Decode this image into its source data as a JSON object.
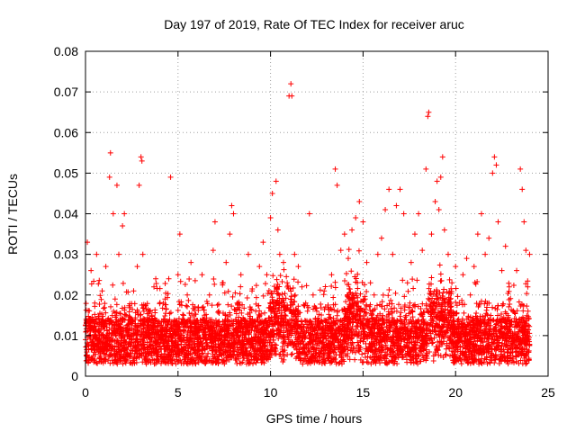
{
  "chart_data": {
    "type": "scatter",
    "title": "Day 197 of 2019, Rate Of TEC Index for receiver aruc",
    "xlabel": "GPS time / hours",
    "ylabel": "ROTI / TECUs",
    "xlim": [
      0,
      25
    ],
    "ylim": [
      0,
      0.08
    ],
    "x_ticks": [
      "0",
      "5",
      "10",
      "15",
      "20",
      "25"
    ],
    "y_ticks": [
      "0",
      "0.01",
      "0.02",
      "0.03",
      "0.04",
      "0.05",
      "0.06",
      "0.07",
      "0.08"
    ],
    "grid": true,
    "marker": "plus",
    "color": "#ff0000",
    "series": [
      {
        "name": "ROTI",
        "points": [
          [
            0.0,
            0.009
          ],
          [
            0.1,
            0.033
          ],
          [
            0.2,
            0.012
          ],
          [
            0.3,
            0.026
          ],
          [
            0.4,
            0.008
          ],
          [
            0.5,
            0.018
          ],
          [
            0.6,
            0.03
          ],
          [
            0.7,
            0.011
          ],
          [
            0.8,
            0.006
          ],
          [
            0.9,
            0.021
          ],
          [
            1.0,
            0.013
          ],
          [
            1.1,
            0.027
          ],
          [
            1.2,
            0.009
          ],
          [
            1.3,
            0.049
          ],
          [
            1.35,
            0.055
          ],
          [
            1.5,
            0.04
          ],
          [
            1.6,
            0.019
          ],
          [
            1.7,
            0.047
          ],
          [
            1.8,
            0.03
          ],
          [
            1.9,
            0.012
          ],
          [
            2.0,
            0.037
          ],
          [
            2.1,
            0.04
          ],
          [
            2.2,
            0.015
          ],
          [
            2.4,
            0.008
          ],
          [
            2.6,
            0.021
          ],
          [
            2.8,
            0.027
          ],
          [
            2.9,
            0.047
          ],
          [
            3.0,
            0.054
          ],
          [
            3.05,
            0.053
          ],
          [
            3.1,
            0.03
          ],
          [
            3.3,
            0.01
          ],
          [
            3.5,
            0.016
          ],
          [
            3.7,
            0.022
          ],
          [
            3.9,
            0.013
          ],
          [
            4.1,
            0.009
          ],
          [
            4.3,
            0.019
          ],
          [
            4.5,
            0.024
          ],
          [
            4.6,
            0.049
          ],
          [
            4.8,
            0.011
          ],
          [
            5.0,
            0.025
          ],
          [
            5.1,
            0.035
          ],
          [
            5.3,
            0.015
          ],
          [
            5.5,
            0.02
          ],
          [
            5.7,
            0.028
          ],
          [
            5.9,
            0.008
          ],
          [
            6.1,
            0.017
          ],
          [
            6.3,
            0.025
          ],
          [
            6.5,
            0.012
          ],
          [
            6.7,
            0.02
          ],
          [
            6.9,
            0.031
          ],
          [
            7.0,
            0.038
          ],
          [
            7.2,
            0.016
          ],
          [
            7.4,
            0.023
          ],
          [
            7.6,
            0.028
          ],
          [
            7.8,
            0.035
          ],
          [
            7.9,
            0.042
          ],
          [
            8.0,
            0.04
          ],
          [
            8.2,
            0.018
          ],
          [
            8.4,
            0.025
          ],
          [
            8.6,
            0.012
          ],
          [
            8.8,
            0.03
          ],
          [
            9.0,
            0.021
          ],
          [
            9.2,
            0.016
          ],
          [
            9.4,
            0.027
          ],
          [
            9.6,
            0.033
          ],
          [
            9.8,
            0.025
          ],
          [
            10.0,
            0.039
          ],
          [
            10.1,
            0.045
          ],
          [
            10.3,
            0.048
          ],
          [
            10.4,
            0.036
          ],
          [
            10.5,
            0.03
          ],
          [
            10.7,
            0.028
          ],
          [
            10.9,
            0.023
          ],
          [
            11.0,
            0.069
          ],
          [
            11.1,
            0.072
          ],
          [
            11.15,
            0.069
          ],
          [
            11.3,
            0.03
          ],
          [
            11.5,
            0.027
          ],
          [
            11.7,
            0.022
          ],
          [
            11.9,
            0.018
          ],
          [
            12.1,
            0.04
          ],
          [
            12.3,
            0.02
          ],
          [
            12.5,
            0.016
          ],
          [
            12.7,
            0.013
          ],
          [
            12.9,
            0.021
          ],
          [
            13.1,
            0.017
          ],
          [
            13.3,
            0.025
          ],
          [
            13.5,
            0.051
          ],
          [
            13.6,
            0.047
          ],
          [
            13.8,
            0.031
          ],
          [
            14.0,
            0.035
          ],
          [
            14.2,
            0.029
          ],
          [
            14.4,
            0.036
          ],
          [
            14.6,
            0.039
          ],
          [
            14.8,
            0.043
          ],
          [
            15.0,
            0.038
          ],
          [
            15.2,
            0.028
          ],
          [
            15.4,
            0.023
          ],
          [
            15.6,
            0.02
          ],
          [
            15.8,
            0.03
          ],
          [
            16.0,
            0.034
          ],
          [
            16.2,
            0.041
          ],
          [
            16.4,
            0.046
          ],
          [
            16.6,
            0.03
          ],
          [
            16.8,
            0.042
          ],
          [
            17.0,
            0.046
          ],
          [
            17.2,
            0.04
          ],
          [
            17.4,
            0.023
          ],
          [
            17.6,
            0.028
          ],
          [
            17.8,
            0.035
          ],
          [
            18.0,
            0.04
          ],
          [
            18.2,
            0.031
          ],
          [
            18.4,
            0.051
          ],
          [
            18.5,
            0.064
          ],
          [
            18.55,
            0.065
          ],
          [
            18.7,
            0.035
          ],
          [
            18.9,
            0.043
          ],
          [
            19.0,
            0.048
          ],
          [
            19.1,
            0.041
          ],
          [
            19.2,
            0.049
          ],
          [
            19.3,
            0.054
          ],
          [
            19.4,
            0.036
          ],
          [
            19.6,
            0.03
          ],
          [
            19.8,
            0.023
          ],
          [
            20.0,
            0.027
          ],
          [
            20.2,
            0.018
          ],
          [
            20.4,
            0.025
          ],
          [
            20.6,
            0.029
          ],
          [
            20.8,
            0.02
          ],
          [
            21.0,
            0.027
          ],
          [
            21.2,
            0.035
          ],
          [
            21.4,
            0.04
          ],
          [
            21.6,
            0.03
          ],
          [
            21.8,
            0.034
          ],
          [
            22.0,
            0.05
          ],
          [
            22.1,
            0.054
          ],
          [
            22.2,
            0.052
          ],
          [
            22.3,
            0.038
          ],
          [
            22.5,
            0.026
          ],
          [
            22.7,
            0.032
          ],
          [
            22.9,
            0.022
          ],
          [
            23.1,
            0.016
          ],
          [
            23.3,
            0.026
          ],
          [
            23.5,
            0.051
          ],
          [
            23.6,
            0.046
          ],
          [
            23.7,
            0.038
          ],
          [
            23.8,
            0.031
          ],
          [
            23.9,
            0.022
          ],
          [
            24.0,
            0.03
          ],
          [
            23.95,
            0.009
          ]
        ],
        "dense_band": {
          "description": "dense background cloud of points",
          "x_range": [
            0,
            24
          ],
          "y_range": [
            0.002,
            0.02
          ]
        }
      }
    ]
  }
}
